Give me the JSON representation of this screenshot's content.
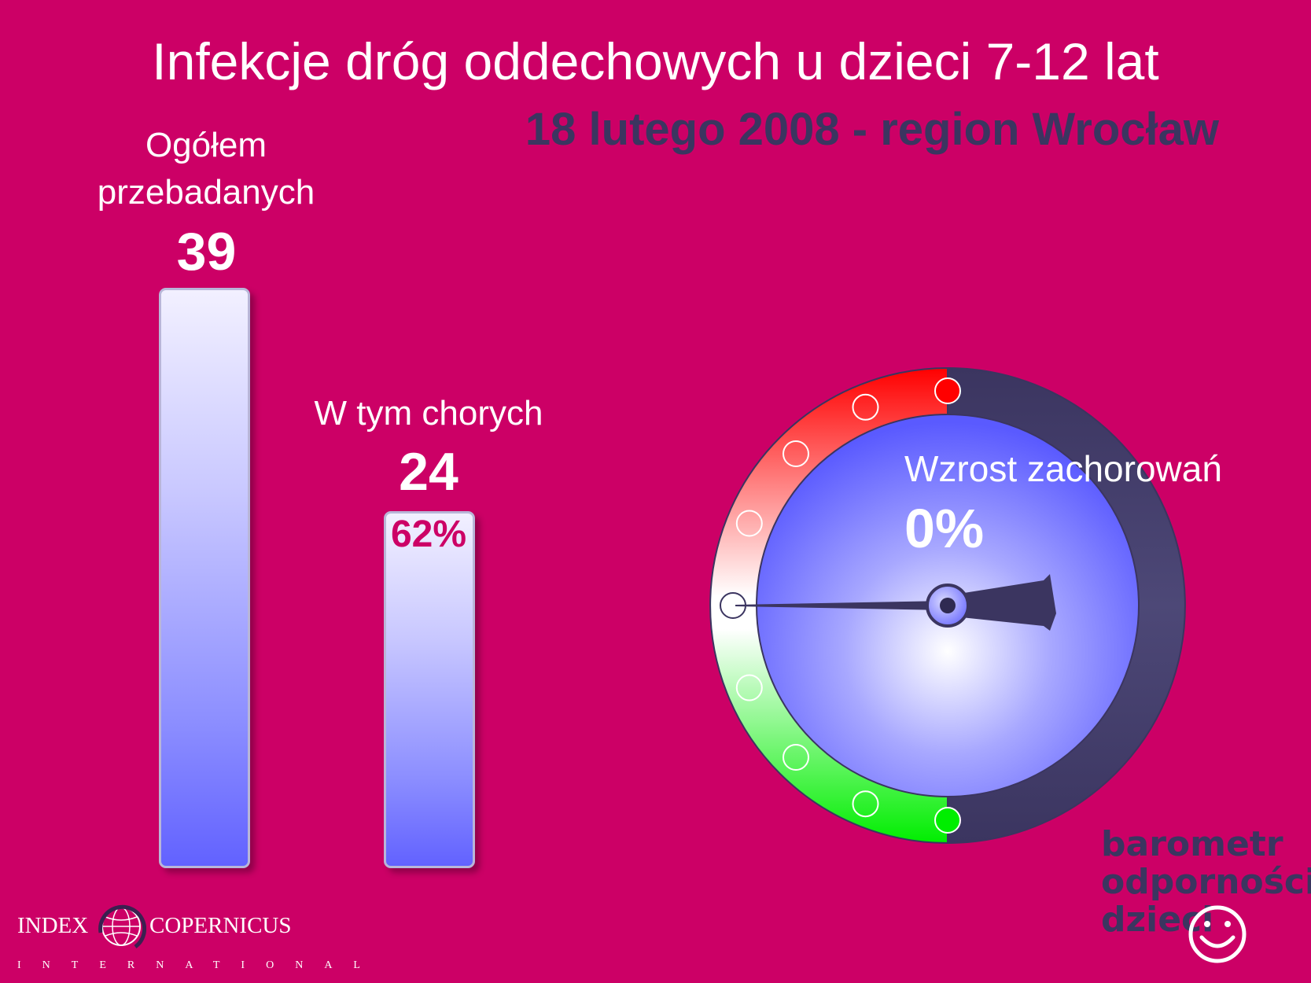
{
  "header": {
    "title": "Infekcje dróg oddechowych u dzieci 7-12 lat",
    "subtitle": "18 lutego 2008 - region Wrocław"
  },
  "chart_data": [
    {
      "type": "bar",
      "categories": [
        "Ogółem przebadanych",
        "W tym chorych"
      ],
      "label_lines": [
        [
          "Ogółem",
          "przebadanych"
        ],
        [
          "W tym chorych"
        ]
      ],
      "values": [
        39,
        24
      ],
      "value_labels": [
        "39",
        "24"
      ],
      "percent_label": "62%",
      "colors": {
        "bar_top": "#f2f0ff",
        "bar_bottom": "#6262ff",
        "background": "#cc0066"
      }
    },
    {
      "type": "gauge",
      "label": "Wzrost zachorowań",
      "value": 0,
      "value_label": "0%",
      "colors": {
        "top": "#ff0000",
        "middle": "#ffffff",
        "bottom": "#00ee00",
        "rim": "#3b3560",
        "dial": "#6a6aff"
      }
    }
  ],
  "footer": {
    "logo_left": {
      "word1": "INDEX",
      "word2": "COPERNICUS",
      "sub": "INTERNATIONAL"
    },
    "logo_right": {
      "line1": "barometr",
      "line2": "odporności",
      "line3": "dzieci"
    }
  }
}
